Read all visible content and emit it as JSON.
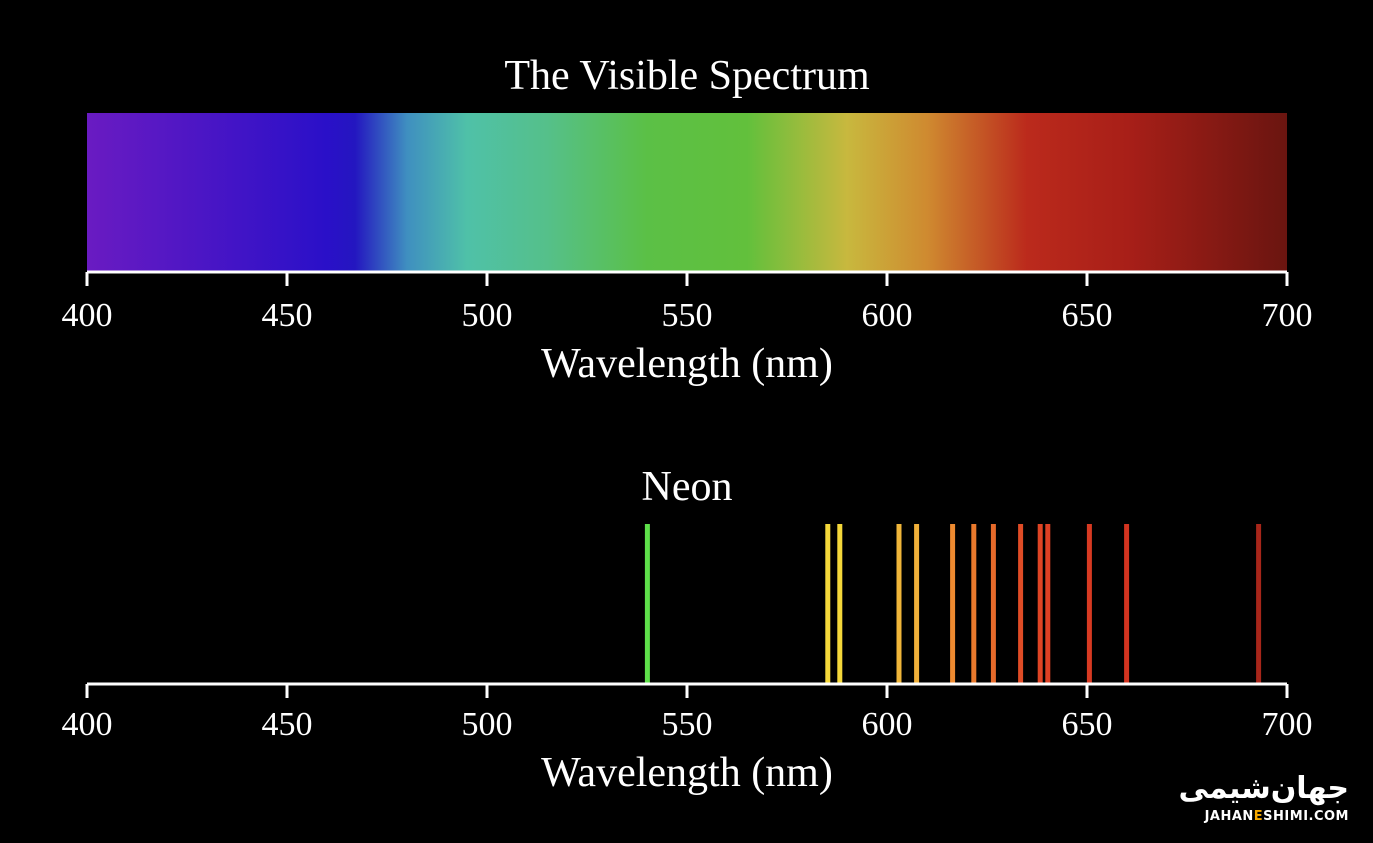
{
  "chart_data": [
    {
      "type": "spectrum",
      "title": "The Visible Spectrum",
      "xlabel": "Wavelength (nm)",
      "xlim": [
        400,
        700
      ],
      "ticks": [
        400,
        450,
        500,
        550,
        600,
        650,
        700
      ],
      "gradient_stops": [
        {
          "nm": 400,
          "color": "#6a1bc2"
        },
        {
          "nm": 460,
          "color": "#2a10c8"
        },
        {
          "nm": 467,
          "color": "#2416c0"
        },
        {
          "nm": 480,
          "color": "#3f8fc0"
        },
        {
          "nm": 495,
          "color": "#4fc1a8"
        },
        {
          "nm": 515,
          "color": "#55c08a"
        },
        {
          "nm": 540,
          "color": "#5bc046"
        },
        {
          "nm": 565,
          "color": "#62c03c"
        },
        {
          "nm": 590,
          "color": "#c8b83e"
        },
        {
          "nm": 610,
          "color": "#cf8a30"
        },
        {
          "nm": 635,
          "color": "#bb2a1c"
        },
        {
          "nm": 660,
          "color": "#a81f18"
        },
        {
          "nm": 700,
          "color": "#6a1510"
        }
      ]
    },
    {
      "type": "emission-lines",
      "title": "Neon",
      "xlabel": "Wavelength (nm)",
      "xlim": [
        400,
        700
      ],
      "ticks": [
        400,
        450,
        500,
        550,
        600,
        650,
        700
      ],
      "lines": [
        {
          "nm": 540.1,
          "color": "#5ee04a"
        },
        {
          "nm": 585.2,
          "color": "#f5d83a"
        },
        {
          "nm": 588.2,
          "color": "#f5d83a"
        },
        {
          "nm": 603.0,
          "color": "#f0b63a"
        },
        {
          "nm": 607.4,
          "color": "#f0b03a"
        },
        {
          "nm": 616.4,
          "color": "#ee8a30"
        },
        {
          "nm": 621.7,
          "color": "#e9792c"
        },
        {
          "nm": 626.6,
          "color": "#e66a2a"
        },
        {
          "nm": 633.4,
          "color": "#e04c26"
        },
        {
          "nm": 638.3,
          "color": "#de4424"
        },
        {
          "nm": 640.2,
          "color": "#dc4024"
        },
        {
          "nm": 650.6,
          "color": "#d83a22"
        },
        {
          "nm": 659.9,
          "color": "#d23420"
        },
        {
          "nm": 692.9,
          "color": "#a8261a"
        }
      ]
    }
  ],
  "watermark": {
    "fa_text": "جهان‌شیمی",
    "en_prefix": "JAHAN",
    "en_accent": "E",
    "en_suffix": "SHIMI.COM"
  }
}
